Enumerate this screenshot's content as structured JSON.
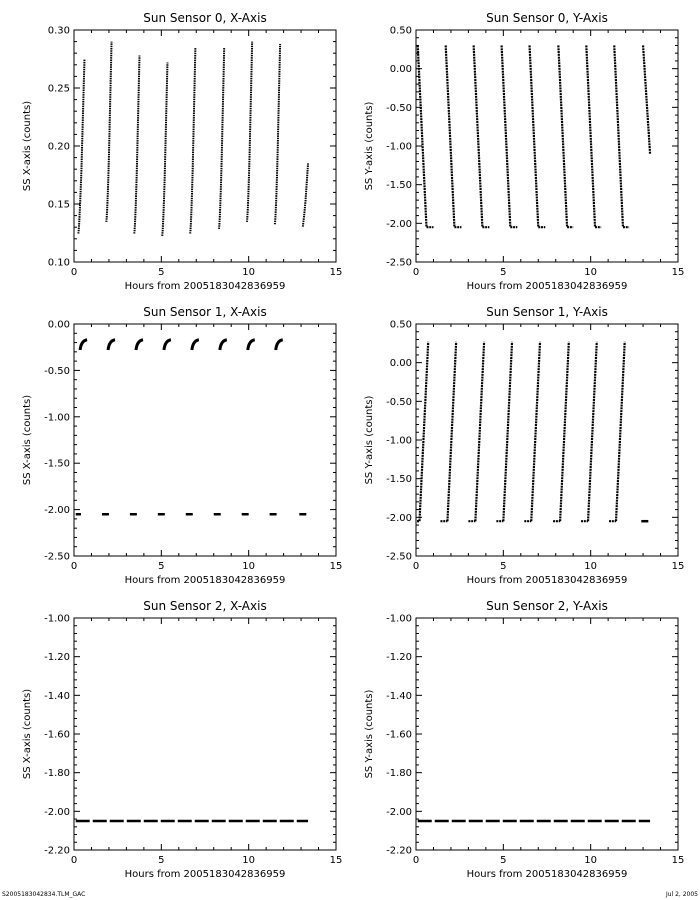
{
  "footer": {
    "left": "S2005183042834.TLM_GAC",
    "right": "Jul 2, 2005"
  },
  "chart_data": [
    {
      "type": "scatter",
      "title": "Sun Sensor 0, X-Axis",
      "xlabel": "Hours from 2005183042836959",
      "ylabel": "SS X-axis (counts)",
      "xlim": [
        0,
        15
      ],
      "ylim": [
        0.1,
        0.3
      ],
      "xticks": [
        "0",
        "5",
        "10",
        "15"
      ],
      "yticks": [
        "0.10",
        "0.15",
        "0.20",
        "0.25",
        "0.30"
      ],
      "pattern": "ramp",
      "segments": [
        {
          "x": [
            0.25,
            0.6
          ],
          "y": [
            0.128,
            0.275
          ]
        },
        {
          "x": [
            1.85,
            2.15
          ],
          "y": [
            0.138,
            0.29
          ]
        },
        {
          "x": [
            3.45,
            3.75
          ],
          "y": [
            0.128,
            0.278
          ]
        },
        {
          "x": [
            5.05,
            5.35
          ],
          "y": [
            0.126,
            0.272
          ]
        },
        {
          "x": [
            6.65,
            6.95
          ],
          "y": [
            0.128,
            0.285
          ]
        },
        {
          "x": [
            8.3,
            8.6
          ],
          "y": [
            0.132,
            0.285
          ]
        },
        {
          "x": [
            9.9,
            10.2
          ],
          "y": [
            0.138,
            0.29
          ]
        },
        {
          "x": [
            11.5,
            11.8
          ],
          "y": [
            0.136,
            0.288
          ]
        },
        {
          "x": [
            13.1,
            13.4
          ],
          "y": [
            0.134,
            0.185
          ]
        }
      ]
    },
    {
      "type": "scatter",
      "title": "Sun Sensor 0, Y-Axis",
      "xlabel": "Hours from 2005183042836959",
      "ylabel": "SS Y-axis (counts)",
      "xlim": [
        0,
        15
      ],
      "ylim": [
        -2.5,
        0.5
      ],
      "xticks": [
        "0",
        "5",
        "10",
        "15"
      ],
      "yticks": [
        "-2.50",
        "-2.00",
        "-1.50",
        "-1.00",
        "-0.50",
        "0.00",
        "0.50"
      ],
      "pattern": "sawtooth-down",
      "segments": [
        {
          "x": [
            0.1,
            0.6
          ],
          "y": [
            0.3,
            -2.05
          ],
          "x_end": 1.0
        },
        {
          "x": [
            1.7,
            2.2
          ],
          "y": [
            0.3,
            -2.05
          ],
          "x_end": 2.6
        },
        {
          "x": [
            3.3,
            3.8
          ],
          "y": [
            0.3,
            -2.05
          ],
          "x_end": 4.2
        },
        {
          "x": [
            4.9,
            5.4
          ],
          "y": [
            0.3,
            -2.05
          ],
          "x_end": 5.8
        },
        {
          "x": [
            6.5,
            7.0
          ],
          "y": [
            0.3,
            -2.05
          ],
          "x_end": 7.4
        },
        {
          "x": [
            8.15,
            8.65
          ],
          "y": [
            0.3,
            -2.05
          ],
          "x_end": 9.0
        },
        {
          "x": [
            9.75,
            10.25
          ],
          "y": [
            0.3,
            -2.05
          ],
          "x_end": 10.6
        },
        {
          "x": [
            11.35,
            11.85
          ],
          "y": [
            0.3,
            -2.05
          ],
          "x_end": 12.2
        },
        {
          "x": [
            13.0,
            13.4
          ],
          "y": [
            0.3,
            -1.1
          ]
        }
      ]
    },
    {
      "type": "scatter",
      "title": "Sun Sensor 1, X-Axis",
      "xlabel": "Hours from 2005183042836959",
      "ylabel": "SS X-axis (counts)",
      "xlim": [
        0,
        15
      ],
      "ylim": [
        -2.5,
        0.0
      ],
      "xticks": [
        "0",
        "5",
        "10",
        "15"
      ],
      "yticks": [
        "-2.50",
        "-2.00",
        "-1.50",
        "-1.00",
        "-0.50",
        "0.00"
      ],
      "pattern": "arcs",
      "segments": [
        {
          "x": [
            0.35,
            0.75
          ],
          "y": [
            -0.28,
            -0.17
          ]
        },
        {
          "x": [
            1.95,
            2.35
          ],
          "y": [
            -0.28,
            -0.17
          ]
        },
        {
          "x": [
            3.55,
            3.95
          ],
          "y": [
            -0.28,
            -0.17
          ]
        },
        {
          "x": [
            5.15,
            5.55
          ],
          "y": [
            -0.28,
            -0.17
          ]
        },
        {
          "x": [
            6.75,
            7.15
          ],
          "y": [
            -0.28,
            -0.17
          ]
        },
        {
          "x": [
            8.35,
            8.75
          ],
          "y": [
            -0.28,
            -0.17
          ]
        },
        {
          "x": [
            9.95,
            10.35
          ],
          "y": [
            -0.28,
            -0.17
          ]
        },
        {
          "x": [
            11.55,
            11.95
          ],
          "y": [
            -0.28,
            -0.17
          ]
        }
      ],
      "floor": {
        "y": -2.05,
        "x": [
          [
            0.1,
            0.4
          ],
          [
            1.6,
            2.0
          ],
          [
            3.2,
            3.6
          ],
          [
            4.8,
            5.2
          ],
          [
            6.4,
            6.8
          ],
          [
            8.0,
            8.4
          ],
          [
            9.6,
            10.0
          ],
          [
            11.2,
            11.6
          ],
          [
            12.9,
            13.3
          ]
        ]
      }
    },
    {
      "type": "scatter",
      "title": "Sun Sensor 1, Y-Axis",
      "xlabel": "Hours from 2005183042836959",
      "ylabel": "SS Y-axis (counts)",
      "xlim": [
        0,
        15
      ],
      "ylim": [
        -2.5,
        0.5
      ],
      "xticks": [
        "0",
        "5",
        "10",
        "15"
      ],
      "yticks": [
        "-2.50",
        "-2.00",
        "-1.50",
        "-1.00",
        "-0.50",
        "0.00",
        "0.50"
      ],
      "pattern": "sawtooth-up",
      "segments": [
        {
          "x": [
            0.2,
            0.7
          ],
          "y": [
            -2.05,
            0.27
          ],
          "x_start": -0.1
        },
        {
          "x": [
            1.8,
            2.3
          ],
          "y": [
            -2.05,
            0.27
          ],
          "x_start": 1.4
        },
        {
          "x": [
            3.4,
            3.9
          ],
          "y": [
            -2.05,
            0.27
          ],
          "x_start": 3.0
        },
        {
          "x": [
            5.0,
            5.5
          ],
          "y": [
            -2.05,
            0.27
          ],
          "x_start": 4.6
        },
        {
          "x": [
            6.6,
            7.1
          ],
          "y": [
            -2.05,
            0.27
          ],
          "x_start": 6.2
        },
        {
          "x": [
            8.25,
            8.75
          ],
          "y": [
            -2.05,
            0.27
          ],
          "x_start": 7.85
        },
        {
          "x": [
            9.85,
            10.35
          ],
          "y": [
            -2.05,
            0.27
          ],
          "x_start": 9.45
        },
        {
          "x": [
            11.45,
            11.95
          ],
          "y": [
            -2.05,
            0.27
          ],
          "x_start": 11.05
        }
      ],
      "floor": {
        "y": -2.05,
        "x": [
          [
            12.9,
            13.3
          ]
        ]
      }
    },
    {
      "type": "scatter",
      "title": "Sun Sensor 2, X-Axis",
      "xlabel": "Hours from 2005183042836959",
      "ylabel": "SS X-axis (counts)",
      "xlim": [
        0,
        15
      ],
      "ylim": [
        -2.2,
        -1.0
      ],
      "xticks": [
        "0",
        "5",
        "10",
        "15"
      ],
      "yticks": [
        "-2.20",
        "-2.00",
        "-1.80",
        "-1.60",
        "-1.40",
        "-1.20",
        "-1.00"
      ],
      "pattern": "flat",
      "floor": {
        "y": -2.05,
        "x": [
          [
            0.1,
            13.4
          ]
        ]
      }
    },
    {
      "type": "scatter",
      "title": "Sun Sensor 2, Y-Axis",
      "xlabel": "Hours from 2005183042836959",
      "ylabel": "SS Y-axis (counts)",
      "xlim": [
        0,
        15
      ],
      "ylim": [
        -2.2,
        -1.0
      ],
      "xticks": [
        "0",
        "5",
        "10",
        "15"
      ],
      "yticks": [
        "-2.20",
        "-2.00",
        "-1.80",
        "-1.60",
        "-1.40",
        "-1.20",
        "-1.00"
      ],
      "pattern": "flat",
      "floor": {
        "y": -2.05,
        "x": [
          [
            0.1,
            13.4
          ]
        ]
      }
    }
  ]
}
